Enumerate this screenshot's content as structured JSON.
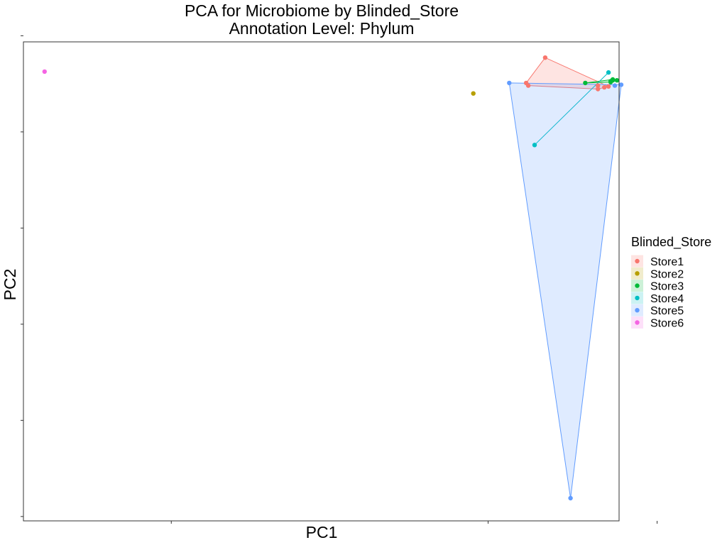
{
  "chart_data": {
    "type": "scatter",
    "title": "PCA for Microbiome by Blinded_Store",
    "subtitle": "Annotation Level: Phylum",
    "xlabel": "PC1",
    "ylabel": "PC2",
    "xlim": [
      -2.2,
      0.62
    ],
    "ylim": [
      -5.05,
      0.43
    ],
    "x_ticks": [
      -1.5,
      0,
      0.8
    ],
    "y_ticks": [
      -5,
      -3.9,
      -2.8,
      -1.7,
      -0.6,
      0.5
    ],
    "grid": false,
    "legend": {
      "title": "Blinded_Store",
      "position": "right",
      "entries": [
        "Store1",
        "Store2",
        "Store3",
        "Store4",
        "Store5",
        "Store6"
      ]
    },
    "hulls": true,
    "series": [
      {
        "name": "Store1",
        "color": "#F8766D",
        "points": [
          [
            0.27,
            0.25
          ],
          [
            0.19,
            -0.07
          ],
          [
            0.18,
            -0.04
          ],
          [
            0.52,
            -0.11
          ],
          [
            0.57,
            -0.08
          ],
          [
            0.52,
            -0.07
          ],
          [
            0.55,
            -0.09
          ]
        ]
      },
      {
        "name": "Store2",
        "color": "#B79F00",
        "points": [
          [
            -0.07,
            -0.16
          ]
        ]
      },
      {
        "name": "Store3",
        "color": "#00BA38",
        "points": [
          [
            0.46,
            -0.04
          ],
          [
            0.58,
            -0.02
          ],
          [
            0.61,
            -0.01
          ],
          [
            0.59,
            -0.01
          ],
          [
            0.59,
            0.0
          ],
          [
            0.58,
            -0.03
          ]
        ]
      },
      {
        "name": "Store4",
        "color": "#00BFC4",
        "points": [
          [
            0.57,
            0.08
          ],
          [
            0.22,
            -0.75
          ]
        ]
      },
      {
        "name": "Store5",
        "color": "#619CFF",
        "points": [
          [
            0.63,
            -0.06
          ],
          [
            0.39,
            -4.79
          ],
          [
            0.1,
            -0.04
          ],
          [
            0.6,
            -0.07
          ]
        ]
      },
      {
        "name": "Store6",
        "color": "#F564E3",
        "points": [
          [
            -2.1,
            0.09
          ]
        ]
      }
    ]
  }
}
